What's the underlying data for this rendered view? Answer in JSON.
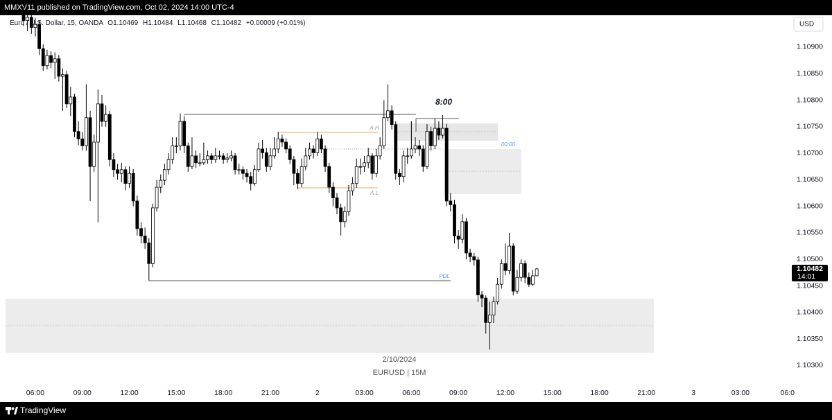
{
  "header": {
    "published": "MMXV11 published on TradingView.com, Oct 02, 2024 14:00 UTC-4"
  },
  "footer": {
    "brand": "TradingView"
  },
  "chart_data": {
    "type": "candlestick",
    "symbol": "Euro / U.S. Dollar, 15, OANDA",
    "ohlc_letters": [
      "O",
      "H",
      "L",
      "C"
    ],
    "change": "+0.00009 (+0.01%)",
    "currency": "USD",
    "countdown": "14:01",
    "date_label": "2/10/2024",
    "watermark": "EURUSD | 15M",
    "annotations": {
      "session_time": "8:00",
      "midnight": "00:00",
      "asia_high": "A.H",
      "asia_low": "A.L",
      "pdl": "PDL"
    },
    "up_color": "#ffffff",
    "down_color": "#000000",
    "border_color": "#000000",
    "grid": false,
    "ylim": [
      1.10273,
      1.1096
    ],
    "yticks": [
      {
        "value": 1.103,
        "label": "1.10300"
      },
      {
        "value": 1.1035,
        "label": "1.10350"
      },
      {
        "value": 1.104,
        "label": "1.10400"
      },
      {
        "value": 1.1045,
        "label": "1.10450"
      },
      {
        "value": 1.105,
        "label": "1.10500"
      },
      {
        "value": 1.1055,
        "label": "1.10550"
      },
      {
        "value": 1.106,
        "label": "1.10600"
      },
      {
        "value": 1.1065,
        "label": "1.10650"
      },
      {
        "value": 1.107,
        "label": "1.10700"
      },
      {
        "value": 1.1075,
        "label": "1.10750"
      },
      {
        "value": 1.108,
        "label": "1.10800"
      },
      {
        "value": 1.1085,
        "label": "1.10850"
      },
      {
        "value": 1.109,
        "label": "1.10900"
      }
    ],
    "xticks": [
      "06:00",
      "09:00",
      "12:00",
      "15:00",
      "18:00",
      "21:00",
      "2",
      "03:00",
      "06:00",
      "09:00",
      "12:00",
      "15:00",
      "18:00",
      "21:00",
      "3",
      "03:00",
      "06:0"
    ],
    "open": [
      1.1096,
      1.1095,
      1.10956,
      1.10937,
      1.10943,
      1.10897,
      1.10865,
      1.10884,
      1.10871,
      1.10878,
      1.10845,
      1.10848,
      1.10793,
      1.10806,
      1.10741,
      1.10727,
      1.10714,
      1.10767,
      1.10675,
      1.10721,
      1.10793,
      1.1076,
      1.10773,
      1.10688,
      1.10669,
      1.10662,
      1.10669,
      1.10643,
      1.10662,
      1.1061,
      1.10558,
      1.10544,
      1.10531,
      1.10492,
      1.10597,
      1.10636,
      1.10649,
      1.10669,
      1.10688,
      1.10714,
      1.10714,
      1.1076,
      1.10714,
      1.10675,
      1.10695,
      1.10682,
      1.10682,
      1.10688,
      1.10695,
      1.10688,
      1.10695,
      1.10695,
      1.10688,
      1.10691,
      1.10695,
      1.10669,
      1.10669,
      1.10662,
      1.10656,
      1.10643,
      1.10669,
      1.10708,
      1.10701,
      1.10675,
      1.10695,
      1.10708,
      1.10727,
      1.10721,
      1.10708,
      1.10688,
      1.10662,
      1.10643,
      1.10675,
      1.10695,
      1.10708,
      1.10701,
      1.10727,
      1.10708,
      1.10675,
      1.10636,
      1.10616,
      1.10597,
      1.10571,
      1.1059,
      1.10629,
      1.10643,
      1.10675,
      1.10675,
      1.10682,
      1.10695,
      1.10662,
      1.10695,
      1.10714,
      1.10767,
      1.1078,
      1.10754,
      1.10662,
      1.10656,
      1.10695,
      1.10695,
      1.10708,
      1.10714,
      1.10708,
      1.10675,
      1.10741,
      1.10714,
      1.10747,
      1.10734,
      1.10747,
      1.1061,
      1.10603,
      1.10544,
      1.10538,
      1.10571,
      1.10512,
      1.10505,
      1.10499,
      1.10433,
      1.10427,
      1.10381,
      1.10395,
      1.1042,
      1.10453,
      1.10492,
      1.10479,
      1.10525,
      1.1044,
      1.10466,
      1.10492,
      1.10466,
      1.10453,
      1.10469
    ],
    "high": [
      1.10975,
      1.1097,
      1.10965,
      1.10955,
      1.1095,
      1.10905,
      1.10895,
      1.10892,
      1.1089,
      1.10885,
      1.1086,
      1.10855,
      1.10825,
      1.10812,
      1.1076,
      1.1074,
      1.1083,
      1.1078,
      1.10735,
      1.1082,
      1.1081,
      1.1079,
      1.1078,
      1.107,
      1.1068,
      1.10682,
      1.10675,
      1.10675,
      1.1067,
      1.1062,
      1.1057,
      1.1056,
      1.1054,
      1.10605,
      1.1065,
      1.1066,
      1.1068,
      1.107,
      1.1073,
      1.1073,
      1.10775,
      1.1077,
      1.1072,
      1.1073,
      1.10705,
      1.107,
      1.1072,
      1.10705,
      1.107,
      1.1071,
      1.10705,
      1.107,
      1.107,
      1.10705,
      1.107,
      1.1068,
      1.10675,
      1.1067,
      1.10665,
      1.10678,
      1.1072,
      1.10725,
      1.1071,
      1.1071,
      1.1073,
      1.1074,
      1.10735,
      1.10728,
      1.10715,
      1.10695,
      1.1067,
      1.1069,
      1.1071,
      1.1072,
      1.10715,
      1.1074,
      1.10735,
      1.10715,
      1.10682,
      1.10645,
      1.10625,
      1.10605,
      1.106,
      1.1064,
      1.10655,
      1.1069,
      1.1069,
      1.10695,
      1.1071,
      1.107,
      1.10708,
      1.1073,
      1.108,
      1.1083,
      1.1079,
      1.1076,
      1.1067,
      1.10705,
      1.1071,
      1.1076,
      1.1073,
      1.10725,
      1.10715,
      1.10755,
      1.1075,
      1.10765,
      1.1076,
      1.10772,
      1.10755,
      1.10625,
      1.10612,
      1.10555,
      1.10585,
      1.10578,
      1.1052,
      1.10512,
      1.10505,
      1.1044,
      1.10432,
      1.1042,
      1.1043,
      1.10465,
      1.105,
      1.1053,
      1.1055,
      1.1053,
      1.1048,
      1.105,
      1.10498,
      1.10475,
      1.1048,
      1.10484
    ],
    "low": [
      1.1094,
      1.1093,
      1.10925,
      1.1092,
      1.10885,
      1.10855,
      1.10858,
      1.1086,
      1.1084,
      1.10835,
      1.1078,
      1.10785,
      1.1077,
      1.1073,
      1.10715,
      1.10705,
      1.10705,
      1.1061,
      1.10665,
      1.1057,
      1.1075,
      1.1075,
      1.10675,
      1.10655,
      1.1065,
      1.10645,
      1.1063,
      1.10635,
      1.106,
      1.10545,
      1.1053,
      1.1052,
      1.1046,
      1.10485,
      1.1059,
      1.10625,
      1.1064,
      1.1066,
      1.1068,
      1.107,
      1.10705,
      1.107,
      1.10665,
      1.1067,
      1.10672,
      1.10675,
      1.10678,
      1.1068,
      1.1068,
      1.10682,
      1.10688,
      1.1068,
      1.10682,
      1.10685,
      1.1066,
      1.1066,
      1.1065,
      1.10645,
      1.1063,
      1.10638,
      1.10665,
      1.1069,
      1.10665,
      1.10668,
      1.1069,
      1.107,
      1.10712,
      1.107,
      1.1068,
      1.1064,
      1.10632,
      1.10636,
      1.10668,
      1.10688,
      1.1069,
      1.10695,
      1.107,
      1.10665,
      1.10625,
      1.106,
      1.10585,
      1.10545,
      1.1056,
      1.10582,
      1.1062,
      1.10635,
      1.1066,
      1.10665,
      1.10672,
      1.1065,
      1.10655,
      1.10688,
      1.10708,
      1.1076,
      1.10745,
      1.1065,
      1.1064,
      1.10645,
      1.1068,
      1.1069,
      1.107,
      1.10695,
      1.10665,
      1.1067,
      1.10705,
      1.10708,
      1.10725,
      1.10728,
      1.106,
      1.1059,
      1.1053,
      1.1052,
      1.1053,
      1.105,
      1.10495,
      1.10488,
      1.1042,
      1.1041,
      1.1036,
      1.1033,
      1.1038,
      1.10415,
      1.10445,
      1.1047,
      1.10472,
      1.10432,
      1.10435,
      1.10458,
      1.10455,
      1.10448,
      1.1045,
      1.10468
    ],
    "close": [
      1.1095,
      1.10956,
      1.10937,
      1.10943,
      1.10897,
      1.10865,
      1.10884,
      1.10871,
      1.10878,
      1.10845,
      1.10848,
      1.10793,
      1.10806,
      1.10741,
      1.10727,
      1.10714,
      1.10767,
      1.10675,
      1.10721,
      1.10793,
      1.1076,
      1.10773,
      1.10688,
      1.10669,
      1.10662,
      1.10669,
      1.10643,
      1.10662,
      1.1061,
      1.10558,
      1.10544,
      1.10531,
      1.10492,
      1.10597,
      1.10636,
      1.10649,
      1.10669,
      1.10688,
      1.10714,
      1.10714,
      1.1076,
      1.10714,
      1.10675,
      1.10695,
      1.10682,
      1.10682,
      1.10688,
      1.10695,
      1.10688,
      1.10695,
      1.10695,
      1.10688,
      1.10691,
      1.10695,
      1.10669,
      1.10669,
      1.10662,
      1.10656,
      1.10643,
      1.10669,
      1.10708,
      1.10701,
      1.10675,
      1.10695,
      1.10708,
      1.10727,
      1.10721,
      1.10708,
      1.10688,
      1.10662,
      1.10643,
      1.10675,
      1.10695,
      1.10708,
      1.10701,
      1.10727,
      1.10708,
      1.10675,
      1.10636,
      1.10616,
      1.10597,
      1.10571,
      1.1059,
      1.10629,
      1.10643,
      1.10675,
      1.10675,
      1.10682,
      1.10695,
      1.10662,
      1.10695,
      1.10714,
      1.10767,
      1.1078,
      1.10754,
      1.10662,
      1.10656,
      1.10695,
      1.10695,
      1.10708,
      1.10714,
      1.10708,
      1.10675,
      1.10741,
      1.10714,
      1.10747,
      1.10734,
      1.10747,
      1.1061,
      1.10603,
      1.10544,
      1.10538,
      1.10571,
      1.10512,
      1.10505,
      1.10499,
      1.10433,
      1.10427,
      1.10381,
      1.10395,
      1.1042,
      1.10453,
      1.10492,
      1.10479,
      1.10525,
      1.1044,
      1.10466,
      1.10492,
      1.10466,
      1.10453,
      1.10469,
      1.10482
    ]
  }
}
